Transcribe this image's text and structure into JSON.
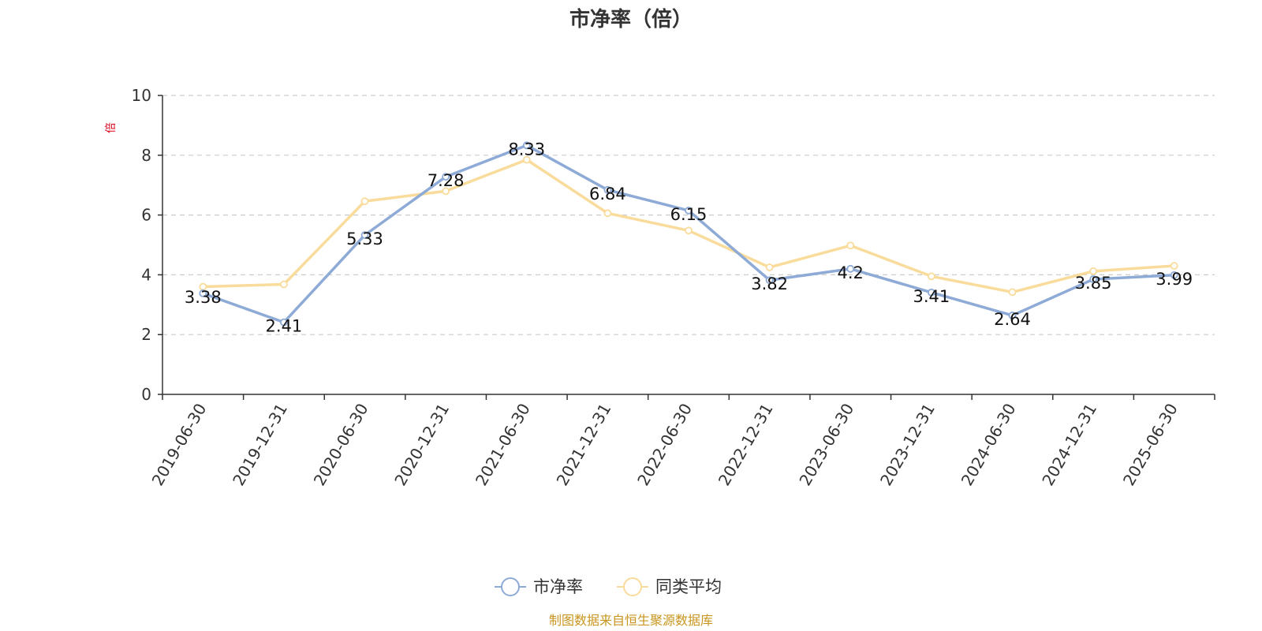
{
  "chart_data": {
    "type": "line",
    "title": "市净率（倍）",
    "ylabel": "倍",
    "ylim": [
      0,
      10
    ],
    "yticks": [
      0,
      2,
      4,
      6,
      8,
      10
    ],
    "grid": true,
    "legend_position": "bottom-center",
    "categories": [
      "2019-06-30",
      "2019-12-31",
      "2020-06-30",
      "2020-12-31",
      "2021-06-30",
      "2021-12-31",
      "2022-06-30",
      "2022-12-31",
      "2023-06-30",
      "2023-12-31",
      "2024-06-30",
      "2024-12-31",
      "2025-06-30"
    ],
    "series": [
      {
        "name": "市净率",
        "color": "#8eaad6",
        "values": [
          3.38,
          2.41,
          5.33,
          7.28,
          8.33,
          6.84,
          6.15,
          3.82,
          4.2,
          3.41,
          2.64,
          3.85,
          3.99
        ],
        "labels": [
          "3.38",
          "2.41",
          "5.33",
          "7.28",
          "8.33",
          "6.84",
          "6.15",
          "3.82",
          "4.2",
          "3.41",
          "2.64",
          "3.85",
          "3.99"
        ]
      },
      {
        "name": "同类平均",
        "color": "#f9dc9b",
        "values": [
          3.6,
          3.68,
          6.46,
          6.8,
          7.85,
          6.06,
          5.48,
          4.25,
          4.98,
          3.95,
          3.42,
          4.12,
          4.3
        ]
      }
    ]
  },
  "source_note": "制图数据来自恒生聚源数据库",
  "colors": {
    "axis": "#333333",
    "grid": "#cccccc",
    "unit_label": "#e0001b",
    "source_note": "#c8961e"
  }
}
